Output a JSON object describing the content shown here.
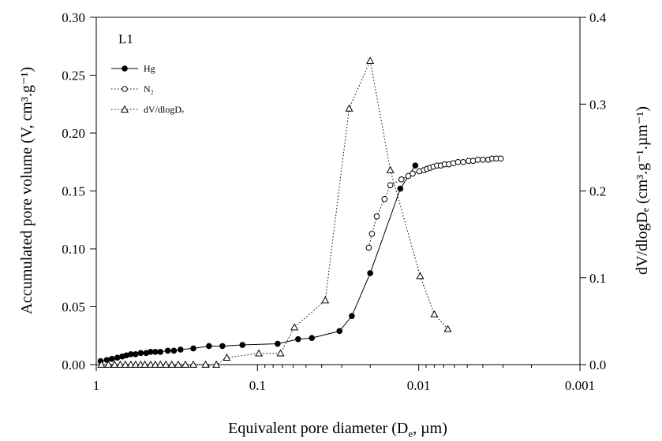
{
  "chart_data": {
    "type": "line",
    "panel_label": "L1",
    "xlabel": "Equivalent pore diameter (D",
    "xlabel_sub": "e",
    "xlabel_tail": ", µm)",
    "ylabel_left": "Accumulated pore volume (V, cm³.g⁻¹)",
    "ylabel_right": "dV/dlogDₑ (cm³.g⁻¹.µm⁻¹)",
    "x_scale": "log-reversed",
    "xlim": [
      1,
      0.001
    ],
    "ylim_left": [
      0,
      0.3
    ],
    "ylim_right": [
      0,
      0.4
    ],
    "grid": false,
    "legend_position": "top-left",
    "x_ticks": [
      {
        "value": 1,
        "label": "1"
      },
      {
        "value": 0.1,
        "label": "0.1"
      },
      {
        "value": 0.01,
        "label": "0.01"
      },
      {
        "value": 0.001,
        "label": "0.001"
      }
    ],
    "y_left_ticks": [
      {
        "value": 0.0,
        "label": "0.00"
      },
      {
        "value": 0.05,
        "label": "0.05"
      },
      {
        "value": 0.1,
        "label": "0.10"
      },
      {
        "value": 0.15,
        "label": "0.15"
      },
      {
        "value": 0.2,
        "label": "0.20"
      },
      {
        "value": 0.25,
        "label": "0.25"
      },
      {
        "value": 0.3,
        "label": "0.30"
      }
    ],
    "y_right_ticks": [
      {
        "value": 0.0,
        "label": "0.0"
      },
      {
        "value": 0.1,
        "label": "0.1"
      },
      {
        "value": 0.2,
        "label": "0.2"
      },
      {
        "value": 0.3,
        "label": "0.3"
      },
      {
        "value": 0.4,
        "label": "0.4"
      }
    ],
    "series": [
      {
        "name": "Hg",
        "axis": "left",
        "marker": "filled-circle",
        "line": "solid",
        "x": [
          0.94,
          0.86,
          0.8,
          0.74,
          0.69,
          0.65,
          0.61,
          0.57,
          0.53,
          0.49,
          0.46,
          0.43,
          0.4,
          0.36,
          0.33,
          0.3,
          0.25,
          0.2,
          0.165,
          0.124,
          0.075,
          0.056,
          0.046,
          0.031,
          0.026,
          0.02,
          0.013,
          0.0105
        ],
        "y": [
          0.003,
          0.004,
          0.005,
          0.006,
          0.007,
          0.008,
          0.009,
          0.009,
          0.01,
          0.01,
          0.011,
          0.011,
          0.011,
          0.012,
          0.012,
          0.013,
          0.014,
          0.016,
          0.016,
          0.017,
          0.018,
          0.022,
          0.023,
          0.029,
          0.042,
          0.079,
          0.152,
          0.172
        ]
      },
      {
        "name": "N₂",
        "axis": "left",
        "marker": "open-circle",
        "line": "dotted",
        "x": [
          0.0204,
          0.0195,
          0.0182,
          0.0163,
          0.015,
          0.0128,
          0.0116,
          0.0109,
          0.0099,
          0.0093,
          0.0089,
          0.0085,
          0.0081,
          0.0077,
          0.0073,
          0.0069,
          0.0065,
          0.0061,
          0.0057,
          0.0053,
          0.0049,
          0.0046,
          0.0043,
          0.004,
          0.0037,
          0.0035,
          0.0033,
          0.0031
        ],
        "y": [
          0.101,
          0.113,
          0.128,
          0.143,
          0.155,
          0.16,
          0.163,
          0.165,
          0.167,
          0.168,
          0.169,
          0.17,
          0.171,
          0.172,
          0.172,
          0.173,
          0.173,
          0.174,
          0.175,
          0.175,
          0.176,
          0.176,
          0.177,
          0.177,
          0.177,
          0.178,
          0.178,
          0.178
        ]
      },
      {
        "name": "dV/dlogDₑ",
        "axis": "right",
        "marker": "open-triangle",
        "line": "dotted",
        "x": [
          0.93,
          0.84,
          0.77,
          0.71,
          0.66,
          0.61,
          0.57,
          0.53,
          0.5,
          0.46,
          0.43,
          0.4,
          0.37,
          0.34,
          0.31,
          0.28,
          0.25,
          0.21,
          0.18,
          0.155,
          0.098,
          0.072,
          0.059,
          0.038,
          0.027,
          0.02,
          0.015,
          0.0098,
          0.008,
          0.0066
        ],
        "y": [
          0.0,
          0.0,
          0.0,
          0.0,
          0.0,
          0.0,
          0.0,
          0.0,
          0.0,
          0.0,
          0.0,
          0.0,
          0.0,
          0.0,
          0.0,
          0.0,
          0.0,
          0.0,
          0.0,
          0.008,
          0.013,
          0.013,
          0.043,
          0.074,
          0.295,
          0.35,
          0.224,
          0.102,
          0.058,
          0.041
        ]
      }
    ]
  }
}
